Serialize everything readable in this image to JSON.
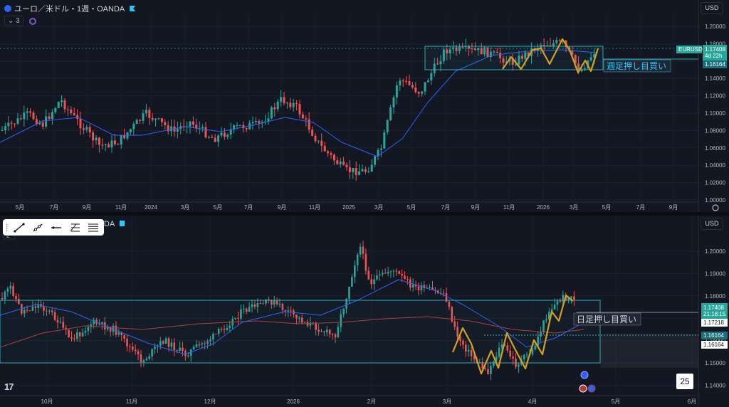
{
  "top_chart": {
    "title": "ユーロ／米ドル・1週・OANDA",
    "indicator_count": "3",
    "currency_button": "USD",
    "annotation": "週足押し目買い",
    "price_axis": [
      "1.20000",
      "1.18000",
      "1.16000",
      "1.14000",
      "1.12000",
      "1.10000",
      "1.08000",
      "1.06000",
      "1.04000",
      "1.02000",
      "1.00000"
    ],
    "time_axis": [
      "5月",
      "7月",
      "9月",
      "11月",
      "2024",
      "3月",
      "5月",
      "7月",
      "9月",
      "11月",
      "2025",
      "3月",
      "5月",
      "7月",
      "9月",
      "11月",
      "2026",
      "3月",
      "5月",
      "7月",
      "9月"
    ],
    "symbol_tag": "EURUSD",
    "price_tag": "1.17408",
    "countdown_tag": "4d 22h",
    "level_tag": "1.16164"
  },
  "bottom_chart": {
    "title_fragment": "DA",
    "indicator_count": "2",
    "currency_button": "USD",
    "annotation": "日足押し目買い",
    "price_axis": [
      "1.20000",
      "1.19000",
      "1.18000",
      "1.17000",
      "1.16000",
      "1.15000",
      "1.14000"
    ],
    "time_axis": [
      "10月",
      "11月",
      "12月",
      "2026",
      "2月",
      "3月",
      "4月",
      "5月",
      "6月"
    ],
    "price_tag": "1.17408",
    "countdown_tag": "21:18:15",
    "level_tag_1": "1.17218",
    "level_tag_2": "1.16164",
    "level_tag_3": "1.16164",
    "counter": "25",
    "logo": "17"
  },
  "colors": {
    "background": "#131722",
    "up_candle": "#26a69a",
    "down_candle": "#ef5350",
    "ma_blue": "#2962ff",
    "ma_red": "#b23a3a",
    "zone_box": "#2ea9b8",
    "zigzag": "#d4a017"
  },
  "icons": {
    "symbol": "eurusd-flag-icon",
    "settings": "gear-icon",
    "drawing_tools": [
      "trend-line-icon",
      "ray-icon",
      "horizontal-line-icon",
      "fib-icon",
      "parallel-channel-icon"
    ]
  }
}
